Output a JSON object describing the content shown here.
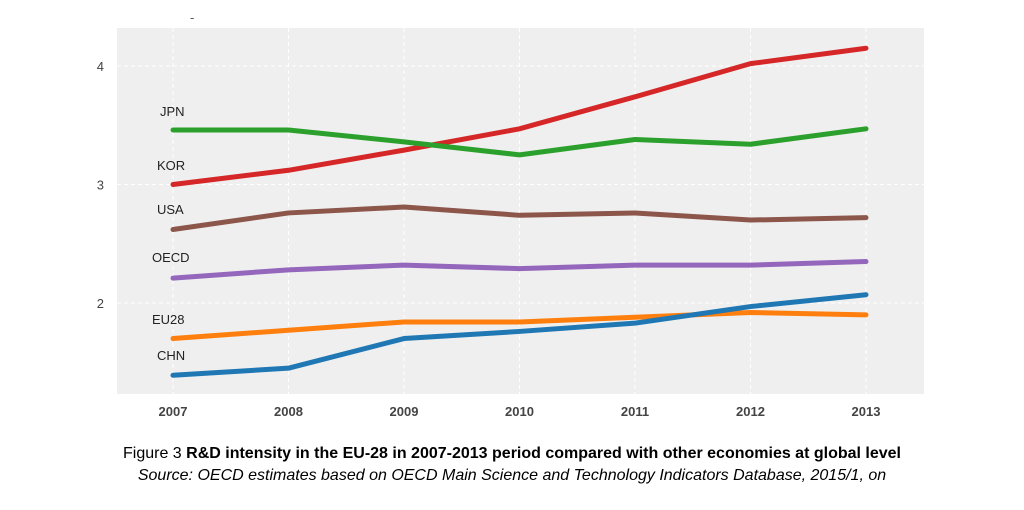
{
  "chart_data": {
    "type": "line",
    "title": "",
    "xlabel": "",
    "ylabel": "",
    "categories": [
      "2007",
      "2008",
      "2009",
      "2010",
      "2011",
      "2012",
      "2013"
    ],
    "y_ticks": [
      "2",
      "3",
      "4"
    ],
    "ylim": [
      1.2,
      4.3
    ],
    "grid": true,
    "legend": "inline-left",
    "series": [
      {
        "name": "KOR",
        "color": "#d62728",
        "values": [
          3.0,
          3.12,
          3.29,
          3.47,
          3.74,
          4.02,
          4.15
        ]
      },
      {
        "name": "JPN",
        "color": "#2ca02c",
        "values": [
          3.46,
          3.46,
          3.36,
          3.25,
          3.38,
          3.34,
          3.47
        ]
      },
      {
        "name": "USA",
        "color": "#8c564b",
        "values": [
          2.62,
          2.76,
          2.81,
          2.74,
          2.76,
          2.7,
          2.72
        ]
      },
      {
        "name": "OECD",
        "color": "#9467bd",
        "values": [
          2.21,
          2.28,
          2.32,
          2.29,
          2.32,
          2.32,
          2.35
        ]
      },
      {
        "name": "EU28",
        "color": "#ff7f0e",
        "values": [
          1.7,
          1.77,
          1.84,
          1.84,
          1.88,
          1.92,
          1.9
        ]
      },
      {
        "name": "CHN",
        "color": "#1f77b4",
        "values": [
          1.39,
          1.45,
          1.7,
          1.76,
          1.83,
          1.97,
          2.07
        ]
      }
    ],
    "stray_mark": "-"
  },
  "caption": {
    "prefix": "Figure 3 ",
    "bold": "R&D intensity in the EU-28 in 2007-2013 period compared with other economies at global level",
    "source": "Source: OECD estimates based on OECD Main Science and Technology Indicators Database, 2015/1, on"
  }
}
